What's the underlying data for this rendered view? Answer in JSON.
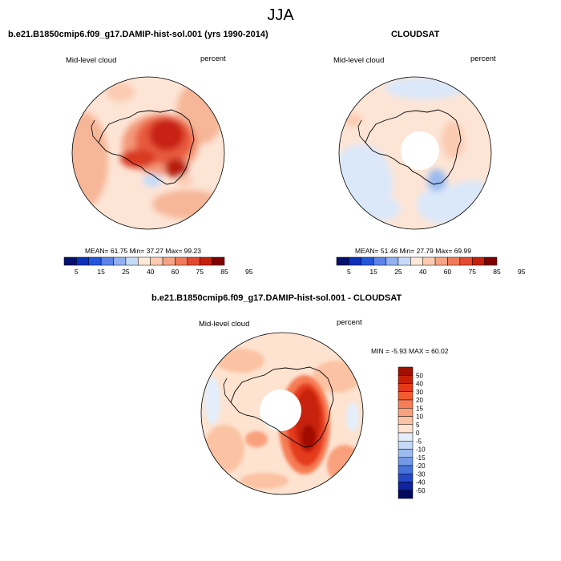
{
  "main_title": "JJA",
  "panel1": {
    "title": "b.e21.B1850cmip6.f09_g17.DAMIP-hist-sol.001 (yrs 1990-2014)",
    "variable": "Mid-level cloud",
    "units": "percent",
    "mean_label": "MEAN=",
    "mean": "61.75",
    "min_label": "Min=",
    "min": "37.27",
    "max_label": "Max=",
    "max": "99.23"
  },
  "panel2": {
    "title": "CLOUDSAT",
    "variable": "Mid-level cloud",
    "units": "percent",
    "mean_label": "MEAN=",
    "mean": "51.46",
    "min_label": "Min=",
    "min": "27.79",
    "max_label": "Max=",
    "max": "69.99"
  },
  "panel3": {
    "title": "b.e21.B1850cmip6.f09_g17.DAMIP-hist-sol.001 - CLOUDSAT",
    "variable": "Mid-level cloud",
    "units": "percent",
    "min_label": "MIN =",
    "min": "-5.93",
    "max_label": "MAX =",
    "max": "60.02"
  },
  "colorbar_h": {
    "ticks": [
      "5",
      "15",
      "25",
      "40",
      "60",
      "75",
      "85",
      "95"
    ],
    "colors": [
      "#08106e",
      "#0b2fb8",
      "#2456dc",
      "#5b83ea",
      "#92b1f2",
      "#c6dbf8",
      "#fde9d8",
      "#fbcab0",
      "#f6a484",
      "#f07a5a",
      "#e44a30",
      "#c4210f",
      "#7f0000"
    ]
  },
  "colorbar_v": {
    "ticks": [
      "50",
      "40",
      "30",
      "20",
      "15",
      "10",
      "5",
      "0",
      "-5",
      "-10",
      "-15",
      "-20",
      "-30",
      "-40",
      "-50"
    ],
    "colors": [
      "#a01000",
      "#c62008",
      "#e43a1a",
      "#f25a30",
      "#f67d55",
      "#f9a07c",
      "#fbc3a3",
      "#fde3d0",
      "#e4eefa",
      "#c4d9f6",
      "#9cbcef",
      "#7298e6",
      "#4672db",
      "#2349c6",
      "#0e23a0",
      "#05085f"
    ]
  },
  "chart_data": [
    {
      "type": "heatmap",
      "title": "b.e21.B1850cmip6.f09_g17.DAMIP-hist-sol.001 (yrs 1990-2014)",
      "variable": "Mid-level cloud",
      "units": "percent",
      "mean": 61.75,
      "min": 37.27,
      "max": 99.23
    },
    {
      "type": "heatmap",
      "title": "CLOUDSAT",
      "variable": "Mid-level cloud",
      "units": "percent",
      "mean": 51.46,
      "min": 27.79,
      "max": 69.99
    },
    {
      "type": "heatmap",
      "title": "b.e21.B1850cmip6.f09_g17.DAMIP-hist-sol.001 - CLOUDSAT",
      "variable": "Mid-level cloud",
      "units": "percent",
      "min": -5.93,
      "max": 60.02
    }
  ]
}
